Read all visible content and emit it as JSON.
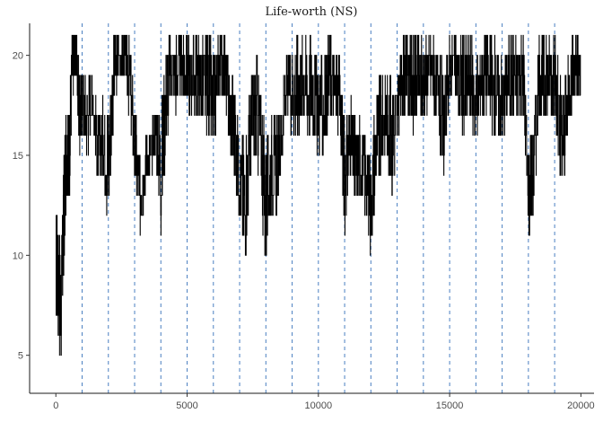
{
  "chart_data": {
    "type": "line",
    "title": "Life-worth (NS)",
    "xlabel": "",
    "ylabel": "",
    "xlim": [
      -1000,
      20500
    ],
    "ylim": [
      3.1,
      21.6
    ],
    "x_ticks": [
      0,
      5000,
      10000,
      15000,
      20000
    ],
    "x_tick_labels": [
      "0",
      "5000",
      "10000",
      "15000",
      "20000"
    ],
    "y_ticks": [
      5,
      10,
      15,
      20
    ],
    "y_tick_labels": [
      "5",
      "10",
      "15",
      "20"
    ],
    "vertical_lines": [
      1000,
      2000,
      3000,
      4000,
      5000,
      6000,
      7000,
      8000,
      9000,
      10000,
      11000,
      12000,
      13000,
      14000,
      15000,
      16000,
      17000,
      18000,
      19000
    ],
    "vertical_line_color": "#4a7fc1",
    "series_color": "#000000",
    "grid": false,
    "series": [
      {
        "x": [
          0,
          100,
          200,
          300,
          400,
          500,
          600,
          700,
          800,
          900,
          1000,
          1200,
          1400,
          1600,
          1800,
          2000,
          2200,
          2400,
          2600,
          2800,
          3000,
          3200,
          3400,
          3600,
          3800,
          4000,
          4200,
          4400,
          4600,
          4800,
          5000,
          5200,
          5400,
          5600,
          5800,
          6000,
          6200,
          6400,
          6600,
          6800,
          7000,
          7200,
          7400,
          7600,
          7800,
          8000,
          8200,
          8400,
          8600,
          8800,
          9000,
          9200,
          9400,
          9600,
          9800,
          10000,
          10200,
          10400,
          10600,
          10800,
          11000,
          11200,
          11400,
          11600,
          11800,
          12000,
          12200,
          12400,
          12600,
          12800,
          13000,
          13200,
          13400,
          13600,
          13800,
          14000,
          14200,
          14400,
          14600,
          14800,
          15000,
          15200,
          15400,
          15600,
          15800,
          16000,
          16200,
          16400,
          16600,
          16800,
          17000,
          17200,
          17400,
          17600,
          17800,
          18000,
          18200,
          18400,
          18600,
          18800,
          19000,
          19200,
          19400,
          19600,
          19800,
          20000
        ],
        "y_low": [
          7,
          6,
          4,
          9,
          13,
          12,
          17,
          19,
          18,
          15,
          16,
          15,
          17,
          13,
          14,
          11,
          17,
          19,
          19,
          17,
          13,
          11,
          13,
          14,
          15,
          11,
          15,
          18,
          17,
          18,
          17,
          17,
          17,
          16,
          16,
          14,
          18,
          18,
          15,
          13,
          12,
          9,
          13,
          15,
          13,
          9,
          12,
          12,
          14,
          17,
          16,
          15,
          17,
          16,
          16,
          15,
          15,
          17,
          16,
          16,
          11,
          14,
          12,
          13,
          12,
          10,
          13,
          14,
          15,
          13,
          15,
          17,
          17,
          16,
          17,
          16,
          18,
          17,
          15,
          14,
          18,
          18,
          16,
          16,
          17,
          15,
          17,
          17,
          16,
          16,
          15,
          17,
          17,
          17,
          17,
          11,
          12,
          17,
          16,
          17,
          17,
          12,
          14,
          17,
          18,
          17
        ],
        "y_high": [
          13,
          12,
          10,
          15,
          17,
          17,
          21,
          21,
          21,
          19,
          19,
          19,
          19,
          17,
          18,
          18,
          21,
          21,
          21,
          21,
          18,
          15,
          16,
          16,
          18,
          17,
          21,
          21,
          21,
          21,
          21,
          21,
          21,
          21,
          21,
          20,
          21,
          21,
          20,
          19,
          16,
          16,
          19,
          20,
          19,
          16,
          17,
          17,
          18,
          20,
          21,
          21,
          21,
          21,
          21,
          20,
          20,
          21,
          21,
          20,
          17,
          18,
          17,
          17,
          16,
          15,
          19,
          19,
          19,
          19,
          19,
          21,
          21,
          21,
          21,
          21,
          21,
          21,
          20,
          19,
          21,
          21,
          21,
          21,
          21,
          20,
          21,
          21,
          21,
          21,
          20,
          21,
          21,
          21,
          21,
          16,
          17,
          21,
          21,
          21,
          21,
          19,
          19,
          21,
          21,
          21
        ]
      }
    ]
  }
}
